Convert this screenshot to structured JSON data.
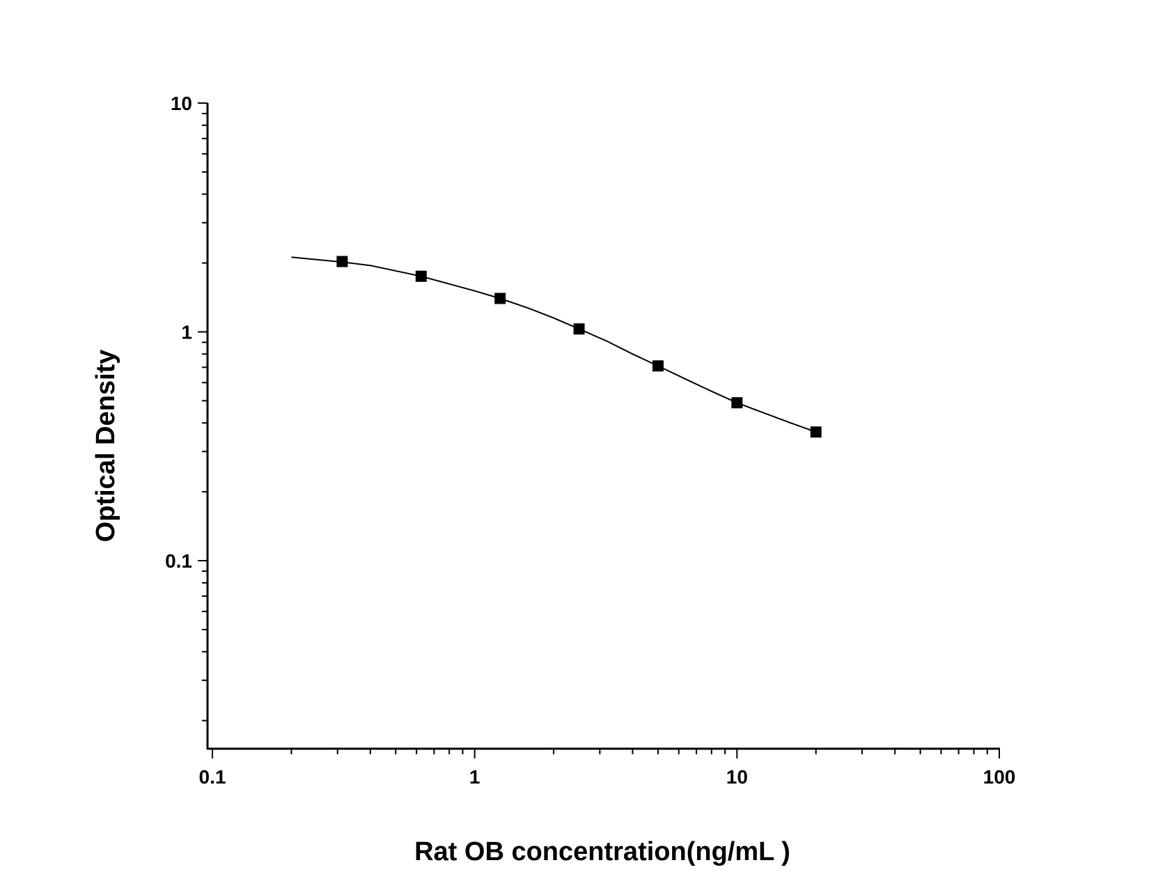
{
  "chart_data": {
    "type": "scatter",
    "title": "",
    "xlabel": "Rat OB concentration(ng/mL )",
    "ylabel": "Optical Density",
    "x_scale": "log",
    "y_scale": "log",
    "xlim": [
      0.1,
      100
    ],
    "ylim": [
      0.02,
      10
    ],
    "x_ticks": [
      {
        "value": 0.1,
        "label": "0.1"
      },
      {
        "value": 1,
        "label": "1"
      },
      {
        "value": 10,
        "label": "10"
      },
      {
        "value": 100,
        "label": "100"
      }
    ],
    "y_ticks": [
      {
        "value": 0.1,
        "label": "0.1"
      },
      {
        "value": 1,
        "label": "1"
      },
      {
        "value": 10,
        "label": "10"
      }
    ],
    "grid": false,
    "legend": false,
    "series": [
      {
        "marker": "square",
        "color": "#000000",
        "fit_line": true,
        "points": [
          {
            "x": 0.3125,
            "y": 2.03
          },
          {
            "x": 0.625,
            "y": 1.75
          },
          {
            "x": 1.25,
            "y": 1.4
          },
          {
            "x": 2.5,
            "y": 1.03
          },
          {
            "x": 5,
            "y": 0.71
          },
          {
            "x": 10,
            "y": 0.49
          },
          {
            "x": 20,
            "y": 0.365
          }
        ],
        "fit_curve": [
          {
            "x": 0.2,
            "y": 2.12
          },
          {
            "x": 0.3125,
            "y": 2.02
          },
          {
            "x": 0.4,
            "y": 1.95
          },
          {
            "x": 0.625,
            "y": 1.75
          },
          {
            "x": 0.8,
            "y": 1.62
          },
          {
            "x": 1,
            "y": 1.51
          },
          {
            "x": 1.25,
            "y": 1.4
          },
          {
            "x": 1.6,
            "y": 1.27
          },
          {
            "x": 2,
            "y": 1.15
          },
          {
            "x": 2.5,
            "y": 1.03
          },
          {
            "x": 3.2,
            "y": 0.91
          },
          {
            "x": 4,
            "y": 0.8
          },
          {
            "x": 5,
            "y": 0.71
          },
          {
            "x": 6.4,
            "y": 0.62
          },
          {
            "x": 8,
            "y": 0.55
          },
          {
            "x": 10,
            "y": 0.49
          },
          {
            "x": 12.8,
            "y": 0.44
          },
          {
            "x": 16,
            "y": 0.4
          },
          {
            "x": 20,
            "y": 0.365
          }
        ]
      }
    ]
  }
}
